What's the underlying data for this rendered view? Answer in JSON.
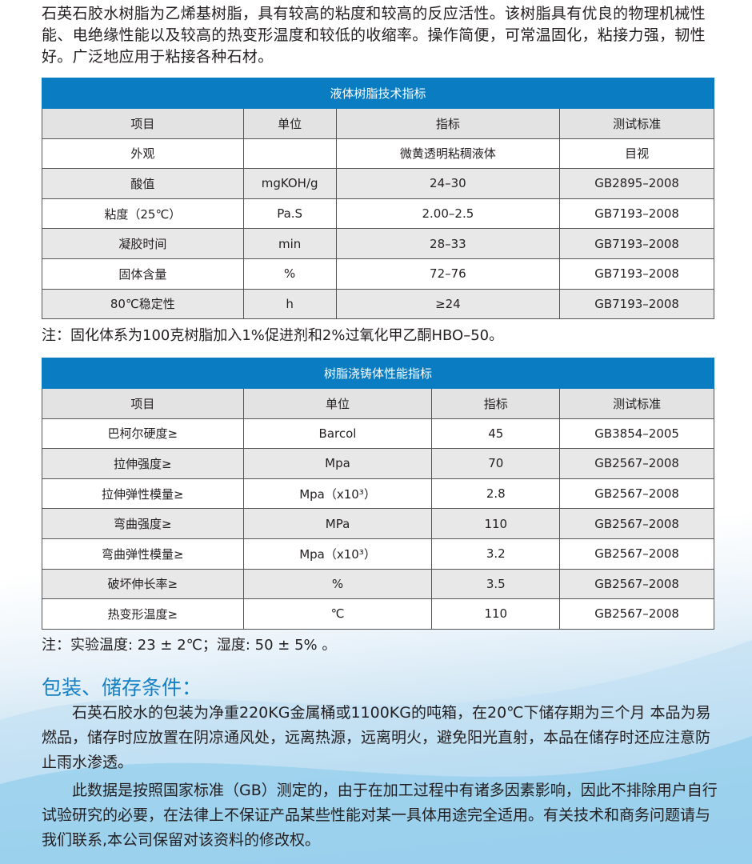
{
  "intro": "石英石胶水树脂为乙烯基树脂，具有较高的粘度和较高的反应活性。该树脂具有优良的物理机械性能、电绝缘性能以及较高的热变形温度和较低的收缩率。操作简便，可常温固化，粘接力强，韧性好。广泛地应用于粘接各种石材。",
  "table1": {
    "title": "液体树脂技术指标",
    "headers": [
      "项目",
      "单位",
      "指标",
      "测试标准"
    ],
    "rows": [
      [
        "外观",
        "",
        "微黄透明粘稠液体",
        "目视"
      ],
      [
        "酸值",
        "mgKOH/g",
        "24–30",
        "GB2895–2008"
      ],
      [
        "粘度（25℃）",
        "Pa.S",
        "2.00–2.5",
        "GB7193–2008"
      ],
      [
        "凝胶时间",
        "min",
        "28–33",
        "GB7193–2008"
      ],
      [
        "固体含量",
        "%",
        "72–76",
        "GB7193–2008"
      ],
      [
        "80℃稳定性",
        "h",
        "≥24",
        "GB7193–2008"
      ]
    ],
    "note": "注：固化体系为100克树脂加入1%促进剂和2%过氧化甲乙酮HBO–50。"
  },
  "table2": {
    "title": "树脂浇铸体性能指标",
    "headers": [
      "项目",
      "单位",
      "指标",
      "测试标准"
    ],
    "rows": [
      [
        "巴柯尔硬度≥",
        "Barcol",
        "45",
        "GB3854–2005"
      ],
      [
        "拉伸强度≥",
        "Mpa",
        "70",
        "GB2567–2008"
      ],
      [
        "拉伸弹性模量≥",
        "Mpa（x10³）",
        "2.8",
        "GB2567–2008"
      ],
      [
        "弯曲强度≥",
        "MPa",
        "110",
        "GB2567–2008"
      ],
      [
        "弯曲弹性模量≥",
        "Mpa（x10³）",
        "3.2",
        "GB2567–2008"
      ],
      [
        "破坏伸长率≥",
        "%",
        "3.5",
        "GB2567–2008"
      ],
      [
        "热变形温度≥",
        "℃",
        "110",
        "GB2567–2008"
      ]
    ],
    "note": "注：实验温度: 23 ± 2℃；湿度: 50 ± 5% 。"
  },
  "storage": {
    "heading": "包装、储存条件：",
    "p1": "石英石胶水的包装为净重220KG金属桶或1100KG的吨箱，在20℃下储存期为三个月 本品为易燃品，储存时应放置在阴凉通风处，远离热源，远离明火，避免阳光直射，本品在储存时还应注意防止雨水渗透。",
    "p2": "此数据是按照国家标准（GB）测定的，由于在加工过程中有诸多因素影响，因此不排除用户自行试验研究的必要，在法律上不保证产品某些性能对某一具体用途完全适用。有关技术和商务问题请与我们联系,本公司保留对该资料的修改权。"
  },
  "colors": {
    "accent": "#0a7cc1",
    "heading": "#1580c4"
  }
}
